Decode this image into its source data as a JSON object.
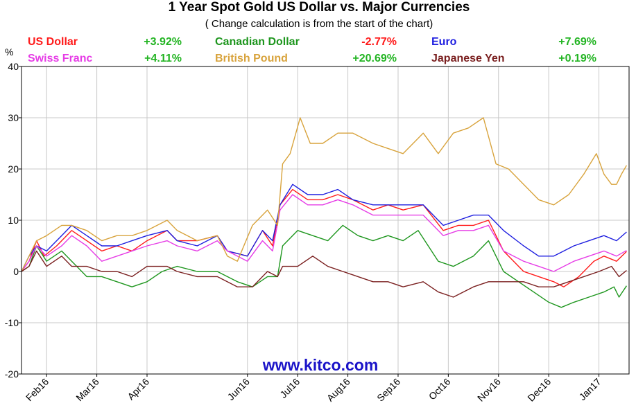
{
  "chart_data": {
    "type": "line",
    "title": "1 Year Spot Gold US Dollar vs. Major Currencies",
    "subtitle": "( Change calculation is from the start of the chart)",
    "ylabel": "%",
    "ylim": [
      -20,
      40
    ],
    "yticks": [
      40,
      30,
      20,
      10,
      0,
      -10,
      -20
    ],
    "xticks": [
      {
        "label": "Feb16",
        "x": 0.5
      },
      {
        "label": "Mar16",
        "x": 1.5
      },
      {
        "label": "Apr16",
        "x": 2.5
      },
      {
        "label": "Jun16",
        "x": 4.5
      },
      {
        "label": "Jul16",
        "x": 5.5
      },
      {
        "label": "Aug16",
        "x": 6.5
      },
      {
        "label": "Sep16",
        "x": 7.5
      },
      {
        "label": "Oct16",
        "x": 8.5
      },
      {
        "label": "Nov16",
        "x": 9.5
      },
      {
        "label": "Dec16",
        "x": 10.5
      },
      {
        "label": "Jan17",
        "x": 11.5
      }
    ],
    "xlim": [
      0,
      12.1
    ],
    "grid": true,
    "legend_position": "top",
    "watermark": "www.kitco.com",
    "series": [
      {
        "name": "US Dollar",
        "change": "+3.92%",
        "color": "#ff1a1a",
        "change_color": "#22b422",
        "points": [
          [
            0,
            0
          ],
          [
            0.15,
            2
          ],
          [
            0.3,
            6
          ],
          [
            0.45,
            3
          ],
          [
            0.7,
            5
          ],
          [
            1.0,
            8
          ],
          [
            1.3,
            6
          ],
          [
            1.6,
            4
          ],
          [
            1.9,
            5
          ],
          [
            2.2,
            4
          ],
          [
            2.5,
            6
          ],
          [
            2.9,
            8
          ],
          [
            3.1,
            6
          ],
          [
            3.5,
            6
          ],
          [
            3.9,
            7
          ],
          [
            4.1,
            4
          ],
          [
            4.5,
            3
          ],
          [
            4.8,
            8
          ],
          [
            5.0,
            5
          ],
          [
            5.15,
            13
          ],
          [
            5.4,
            16
          ],
          [
            5.7,
            14
          ],
          [
            6.0,
            14
          ],
          [
            6.3,
            15
          ],
          [
            6.6,
            14
          ],
          [
            7.0,
            12
          ],
          [
            7.3,
            13
          ],
          [
            7.6,
            12
          ],
          [
            8.0,
            13
          ],
          [
            8.4,
            8
          ],
          [
            8.7,
            9
          ],
          [
            9.0,
            9
          ],
          [
            9.3,
            10
          ],
          [
            9.6,
            4
          ],
          [
            10.0,
            0
          ],
          [
            10.3,
            -1
          ],
          [
            10.6,
            -2
          ],
          [
            10.8,
            -3
          ],
          [
            11.1,
            -1
          ],
          [
            11.4,
            2
          ],
          [
            11.6,
            3
          ],
          [
            11.85,
            2
          ],
          [
            12.05,
            3.9
          ]
        ]
      },
      {
        "name": "Canadian Dollar",
        "change": "-2.77%",
        "color": "#1e961e",
        "change_color": "#ff1a1a",
        "points": [
          [
            0,
            0
          ],
          [
            0.15,
            1
          ],
          [
            0.3,
            5
          ],
          [
            0.5,
            2
          ],
          [
            0.8,
            4
          ],
          [
            1.0,
            2
          ],
          [
            1.3,
            -1
          ],
          [
            1.6,
            -1
          ],
          [
            1.9,
            -2
          ],
          [
            2.2,
            -3
          ],
          [
            2.5,
            -2
          ],
          [
            2.8,
            0
          ],
          [
            3.1,
            1
          ],
          [
            3.5,
            0
          ],
          [
            3.9,
            0
          ],
          [
            4.3,
            -2
          ],
          [
            4.6,
            -3
          ],
          [
            4.9,
            -1
          ],
          [
            5.1,
            -1
          ],
          [
            5.2,
            5
          ],
          [
            5.5,
            8
          ],
          [
            5.8,
            7
          ],
          [
            6.1,
            6
          ],
          [
            6.4,
            9
          ],
          [
            6.7,
            7
          ],
          [
            7.0,
            6
          ],
          [
            7.3,
            7
          ],
          [
            7.6,
            6
          ],
          [
            7.9,
            8
          ],
          [
            8.3,
            2
          ],
          [
            8.6,
            1
          ],
          [
            9.0,
            3
          ],
          [
            9.3,
            6
          ],
          [
            9.6,
            0
          ],
          [
            9.9,
            -2
          ],
          [
            10.2,
            -4
          ],
          [
            10.5,
            -6
          ],
          [
            10.75,
            -7
          ],
          [
            11.0,
            -6
          ],
          [
            11.3,
            -5
          ],
          [
            11.6,
            -4
          ],
          [
            11.8,
            -3
          ],
          [
            11.9,
            -5
          ],
          [
            12.05,
            -2.8
          ]
        ]
      },
      {
        "name": "Euro",
        "change": "+7.69%",
        "color": "#1f1fe0",
        "change_color": "#22b422",
        "points": [
          [
            0,
            0
          ],
          [
            0.15,
            3
          ],
          [
            0.3,
            5
          ],
          [
            0.5,
            4
          ],
          [
            0.8,
            7
          ],
          [
            1.0,
            9
          ],
          [
            1.3,
            7
          ],
          [
            1.6,
            5
          ],
          [
            1.9,
            5
          ],
          [
            2.2,
            6
          ],
          [
            2.5,
            7
          ],
          [
            2.9,
            8
          ],
          [
            3.1,
            6
          ],
          [
            3.5,
            5
          ],
          [
            3.9,
            7
          ],
          [
            4.1,
            4
          ],
          [
            4.5,
            3
          ],
          [
            4.8,
            8
          ],
          [
            5.0,
            6
          ],
          [
            5.15,
            13
          ],
          [
            5.4,
            17
          ],
          [
            5.7,
            15
          ],
          [
            6.0,
            15
          ],
          [
            6.3,
            16
          ],
          [
            6.6,
            14
          ],
          [
            7.0,
            13
          ],
          [
            7.3,
            13
          ],
          [
            7.6,
            13
          ],
          [
            8.0,
            13
          ],
          [
            8.4,
            9
          ],
          [
            8.7,
            10
          ],
          [
            9.0,
            11
          ],
          [
            9.3,
            11
          ],
          [
            9.6,
            8
          ],
          [
            10.0,
            5
          ],
          [
            10.3,
            3
          ],
          [
            10.6,
            3
          ],
          [
            11.0,
            5
          ],
          [
            11.3,
            6
          ],
          [
            11.6,
            7
          ],
          [
            11.85,
            6
          ],
          [
            12.05,
            7.7
          ]
        ]
      },
      {
        "name": "Swiss Franc",
        "change": "+4.11%",
        "color": "#e63ce6",
        "change_color": "#22b422",
        "points": [
          [
            0,
            0
          ],
          [
            0.15,
            2
          ],
          [
            0.3,
            5
          ],
          [
            0.5,
            3
          ],
          [
            0.8,
            5
          ],
          [
            1.0,
            7
          ],
          [
            1.3,
            5
          ],
          [
            1.6,
            2
          ],
          [
            1.9,
            3
          ],
          [
            2.2,
            4
          ],
          [
            2.5,
            5
          ],
          [
            2.9,
            6
          ],
          [
            3.1,
            5
          ],
          [
            3.5,
            4
          ],
          [
            3.9,
            6
          ],
          [
            4.1,
            4
          ],
          [
            4.5,
            2
          ],
          [
            4.8,
            6
          ],
          [
            5.0,
            4
          ],
          [
            5.15,
            12
          ],
          [
            5.4,
            15
          ],
          [
            5.7,
            13
          ],
          [
            6.0,
            13
          ],
          [
            6.3,
            14
          ],
          [
            6.6,
            13
          ],
          [
            7.0,
            11
          ],
          [
            7.3,
            11
          ],
          [
            7.6,
            11
          ],
          [
            8.0,
            11
          ],
          [
            8.4,
            7
          ],
          [
            8.7,
            8
          ],
          [
            9.0,
            8
          ],
          [
            9.3,
            9
          ],
          [
            9.6,
            4
          ],
          [
            10.0,
            2
          ],
          [
            10.3,
            1
          ],
          [
            10.6,
            0
          ],
          [
            11.0,
            2
          ],
          [
            11.3,
            3
          ],
          [
            11.6,
            4
          ],
          [
            11.85,
            3
          ],
          [
            12.05,
            4.1
          ]
        ]
      },
      {
        "name": "British Pound",
        "change": "+20.69%",
        "color": "#d8a33c",
        "change_color": "#22b422",
        "points": [
          [
            0,
            0
          ],
          [
            0.15,
            3
          ],
          [
            0.3,
            6
          ],
          [
            0.5,
            7
          ],
          [
            0.8,
            9
          ],
          [
            1.0,
            9
          ],
          [
            1.3,
            8
          ],
          [
            1.6,
            6
          ],
          [
            1.9,
            7
          ],
          [
            2.2,
            7
          ],
          [
            2.5,
            8
          ],
          [
            2.9,
            10
          ],
          [
            3.1,
            8
          ],
          [
            3.5,
            6
          ],
          [
            3.9,
            7
          ],
          [
            4.1,
            3
          ],
          [
            4.3,
            2
          ],
          [
            4.6,
            9
          ],
          [
            4.9,
            12
          ],
          [
            5.1,
            9
          ],
          [
            5.2,
            21
          ],
          [
            5.35,
            23
          ],
          [
            5.55,
            30
          ],
          [
            5.75,
            25
          ],
          [
            6.0,
            25
          ],
          [
            6.3,
            27
          ],
          [
            6.6,
            27
          ],
          [
            7.0,
            25
          ],
          [
            7.3,
            24
          ],
          [
            7.6,
            23
          ],
          [
            8.0,
            27
          ],
          [
            8.3,
            23
          ],
          [
            8.6,
            27
          ],
          [
            8.9,
            28
          ],
          [
            9.2,
            30
          ],
          [
            9.45,
            21
          ],
          [
            9.7,
            20
          ],
          [
            10.0,
            17
          ],
          [
            10.3,
            14
          ],
          [
            10.6,
            13
          ],
          [
            10.9,
            15
          ],
          [
            11.2,
            19
          ],
          [
            11.45,
            23
          ],
          [
            11.6,
            19
          ],
          [
            11.75,
            17
          ],
          [
            11.85,
            17
          ],
          [
            11.95,
            19
          ],
          [
            12.05,
            20.7
          ]
        ]
      },
      {
        "name": "Japanese Yen",
        "change": "+0.19%",
        "color": "#7a1f1f",
        "change_color": "#22b422",
        "points": [
          [
            0,
            0
          ],
          [
            0.15,
            1
          ],
          [
            0.3,
            4
          ],
          [
            0.5,
            1
          ],
          [
            0.8,
            3
          ],
          [
            1.0,
            1
          ],
          [
            1.3,
            1
          ],
          [
            1.6,
            0
          ],
          [
            1.9,
            0
          ],
          [
            2.2,
            -1
          ],
          [
            2.5,
            1
          ],
          [
            2.9,
            1
          ],
          [
            3.1,
            0
          ],
          [
            3.5,
            -1
          ],
          [
            3.9,
            -1
          ],
          [
            4.3,
            -3
          ],
          [
            4.6,
            -3
          ],
          [
            4.9,
            0
          ],
          [
            5.1,
            -1
          ],
          [
            5.2,
            1
          ],
          [
            5.5,
            1
          ],
          [
            5.8,
            3
          ],
          [
            6.1,
            1
          ],
          [
            6.4,
            0
          ],
          [
            6.7,
            -1
          ],
          [
            7.0,
            -2
          ],
          [
            7.3,
            -2
          ],
          [
            7.6,
            -3
          ],
          [
            8.0,
            -2
          ],
          [
            8.3,
            -4
          ],
          [
            8.6,
            -5
          ],
          [
            9.0,
            -3
          ],
          [
            9.3,
            -2
          ],
          [
            9.6,
            -2
          ],
          [
            10.0,
            -2
          ],
          [
            10.3,
            -3
          ],
          [
            10.6,
            -3
          ],
          [
            10.9,
            -2
          ],
          [
            11.2,
            -1
          ],
          [
            11.5,
            0
          ],
          [
            11.75,
            1
          ],
          [
            11.9,
            -1
          ],
          [
            12.05,
            0.2
          ]
        ]
      }
    ]
  }
}
